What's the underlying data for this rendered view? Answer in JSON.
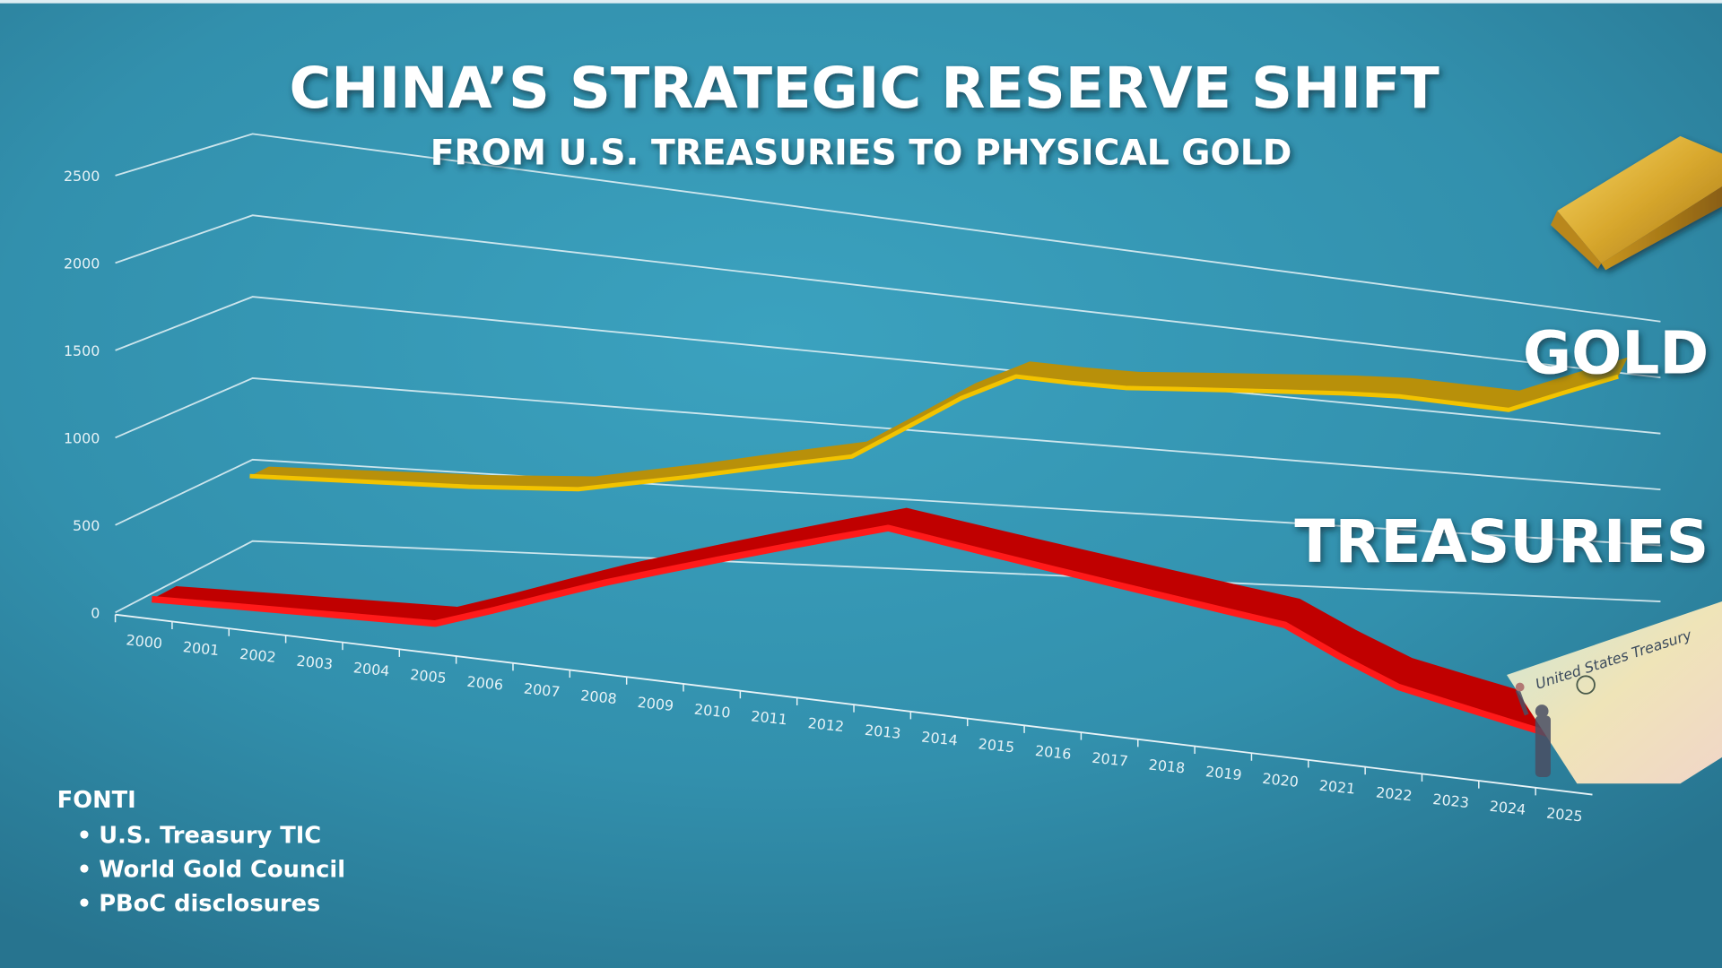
{
  "chart_data": {
    "type": "line",
    "title": "CHINA’S STRATEGIC RESERVE SHIFT",
    "subtitle": "FROM U.S. TREASURIES TO PHYSICAL GOLD",
    "x": [
      2000,
      2001,
      2002,
      2003,
      2004,
      2005,
      2006,
      2007,
      2008,
      2009,
      2010,
      2011,
      2012,
      2013,
      2014,
      2015,
      2016,
      2017,
      2018,
      2019,
      2020,
      2021,
      2022,
      2023,
      2024,
      2025
    ],
    "x_tick_labels": [
      "2000",
      "2001",
      "2002",
      "2003",
      "2004",
      "2005",
      "2006",
      "2007",
      "2008",
      "2009",
      "2010",
      "2011",
      "2012",
      "2013",
      "2014",
      "2015",
      "2016",
      "2017",
      "2018",
      "2019",
      "2020",
      "2021",
      "2022",
      "2023",
      "2024",
      "2025"
    ],
    "y_tick_labels": [
      "0",
      "500",
      "1000",
      "1500",
      "2000",
      "2500"
    ],
    "y_ticks": [
      0,
      500,
      1000,
      1500,
      2000,
      2500
    ],
    "ylim": [
      0,
      2500
    ],
    "grid": true,
    "style": "3d-ribbon",
    "series": [
      {
        "name": "GOLD",
        "color": "#f2c300",
        "shade": "#b8900a",
        "values": [
          500,
          510,
          520,
          530,
          540,
          560,
          580,
          650,
          720,
          800,
          880,
          960,
          1200,
          1450,
          1650,
          1650,
          1660,
          1700,
          1740,
          1780,
          1820,
          1850,
          1850,
          1850,
          2050,
          2250
        ]
      },
      {
        "name": "TREASURIES",
        "color": "#ff1a1a",
        "shade": "#c00000",
        "values": [
          70,
          80,
          90,
          100,
          110,
          120,
          240,
          370,
          500,
          620,
          740,
          860,
          980,
          1100,
          1060,
          1020,
          980,
          940,
          900,
          860,
          820,
          640,
          480,
          400,
          320,
          240
        ]
      }
    ]
  },
  "sources": {
    "heading": "FONTI",
    "items": [
      "U.S. Treasury TIC",
      "World Gold Council",
      "PBoC disclosures"
    ]
  },
  "images": {
    "gold_bar": "gold-bar-photo",
    "treasury_check": "united-states-treasury-check-photo"
  },
  "colors": {
    "background": "#3596b3",
    "grid": "#e8f3f7"
  }
}
